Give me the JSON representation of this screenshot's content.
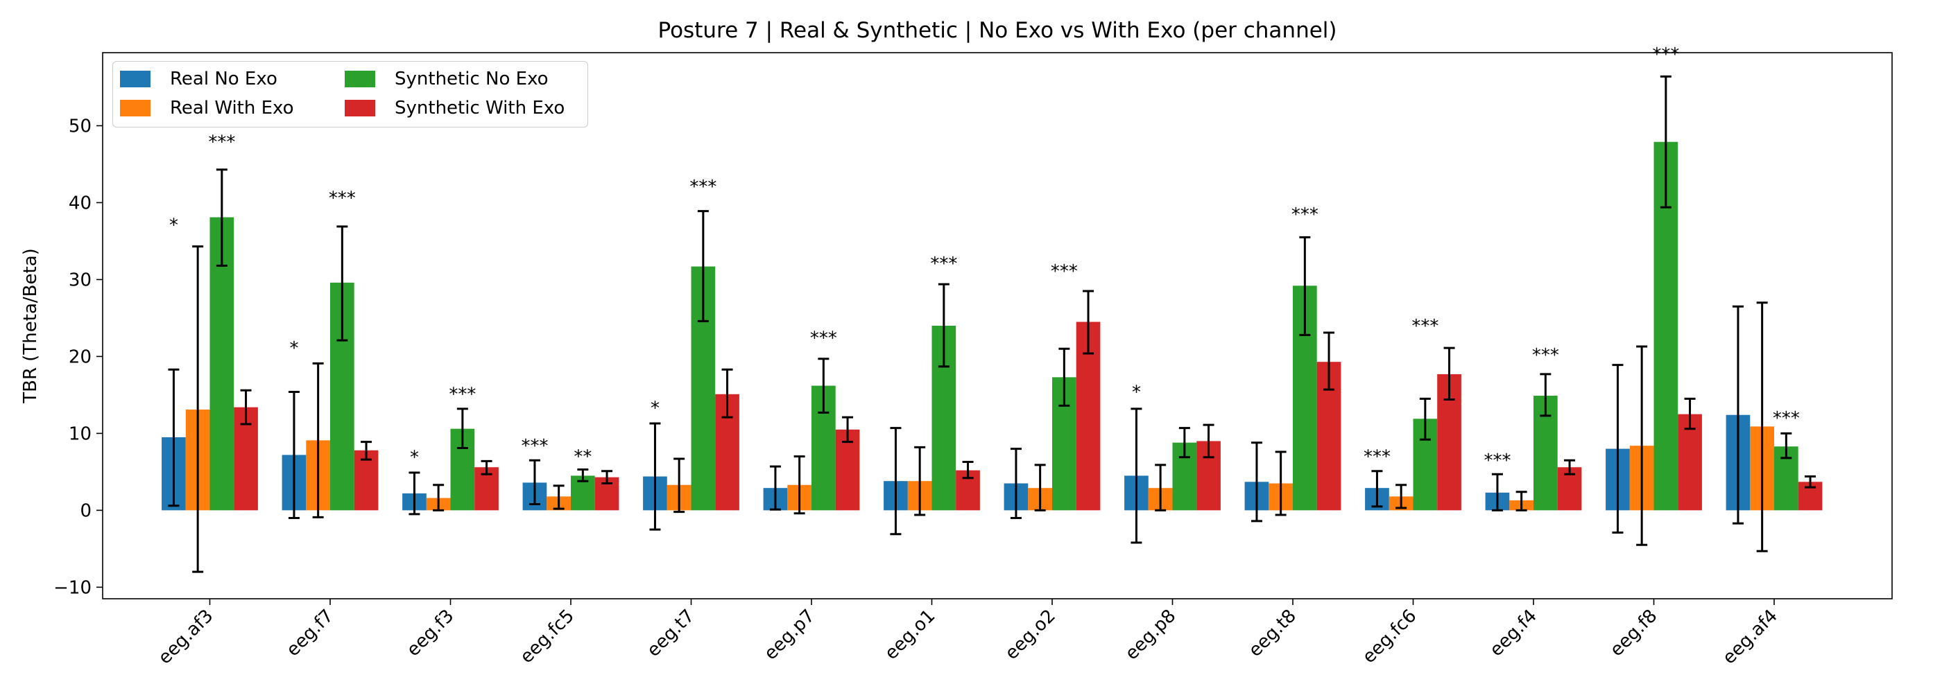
{
  "chart_data": {
    "type": "bar",
    "title": "Posture 7 | Real & Synthetic | No Exo vs With Exo (per channel)",
    "xlabel": "",
    "ylabel": "TBR (Theta/Beta)",
    "ylim": [
      -11.5,
      59.5
    ],
    "yticks": [
      -10,
      0,
      10,
      20,
      30,
      40,
      50
    ],
    "grid": false,
    "legend_position": "top-left",
    "categories": [
      "eeg.af3",
      "eeg.f7",
      "eeg.f3",
      "eeg.fc5",
      "eeg.t7",
      "eeg.p7",
      "eeg.o1",
      "eeg.o2",
      "eeg.p8",
      "eeg.t8",
      "eeg.fc6",
      "eeg.f4",
      "eeg.f8",
      "eeg.af4"
    ],
    "series": [
      {
        "name": "Real No Exo",
        "color": "#1f77b4",
        "values": [
          9.5,
          7.2,
          2.2,
          3.6,
          4.4,
          2.9,
          3.8,
          3.5,
          4.5,
          3.7,
          2.9,
          2.3,
          8.0,
          12.4
        ],
        "err_low": [
          0.6,
          -1.0,
          -0.5,
          0.8,
          -2.5,
          0.1,
          -3.1,
          -1.0,
          -4.2,
          -1.4,
          0.5,
          0.0,
          -2.9,
          -1.7
        ],
        "err_high": [
          18.3,
          15.4,
          4.9,
          6.5,
          11.3,
          5.7,
          10.7,
          8.0,
          13.2,
          8.8,
          5.1,
          4.7,
          18.9,
          26.5
        ]
      },
      {
        "name": "Real With Exo",
        "color": "#ff7f0e",
        "values": [
          13.1,
          9.1,
          1.6,
          1.8,
          3.3,
          3.3,
          3.8,
          2.9,
          2.9,
          3.5,
          1.8,
          1.3,
          8.4,
          10.9
        ],
        "err_low": [
          -8.0,
          -0.9,
          0.0,
          0.2,
          -0.2,
          -0.4,
          -0.6,
          0.0,
          0.0,
          -0.6,
          0.3,
          0.0,
          -4.5,
          -5.3
        ],
        "err_high": [
          34.3,
          19.1,
          3.3,
          3.2,
          6.7,
          7.0,
          8.2,
          5.9,
          5.9,
          7.6,
          3.3,
          2.4,
          21.3,
          27.0
        ]
      },
      {
        "name": "Synthetic No Exo",
        "color": "#2ca02c",
        "values": [
          38.1,
          29.6,
          10.6,
          4.5,
          31.7,
          16.2,
          24.0,
          17.3,
          8.8,
          29.2,
          11.9,
          14.9,
          47.9,
          8.3
        ],
        "err_low": [
          31.8,
          22.1,
          8.1,
          3.8,
          24.6,
          12.7,
          18.7,
          13.6,
          6.9,
          22.8,
          9.2,
          12.3,
          39.4,
          6.8
        ],
        "err_high": [
          44.3,
          36.9,
          13.2,
          5.3,
          38.9,
          19.7,
          29.4,
          21.0,
          10.7,
          35.5,
          14.5,
          17.7,
          56.4,
          10.0
        ]
      },
      {
        "name": "Synthetic With Exo",
        "color": "#d62728",
        "values": [
          13.4,
          7.8,
          5.6,
          4.3,
          15.1,
          10.5,
          5.2,
          24.5,
          9.0,
          19.3,
          17.7,
          5.6,
          12.5,
          3.7
        ],
        "err_low": [
          11.2,
          6.6,
          4.7,
          3.5,
          12.1,
          8.9,
          4.2,
          20.4,
          6.9,
          15.7,
          14.4,
          4.7,
          10.6,
          3.0
        ],
        "err_high": [
          15.6,
          8.9,
          6.4,
          5.1,
          18.3,
          12.1,
          6.3,
          28.5,
          11.1,
          23.1,
          21.1,
          6.5,
          14.5,
          4.4
        ]
      }
    ],
    "annotations": [
      {
        "category": "eeg.af3",
        "series": "Real No Exo",
        "text": "*",
        "y": 36.3
      },
      {
        "category": "eeg.af3",
        "series": "Synthetic No Exo",
        "text": "***",
        "y": 47.1
      },
      {
        "category": "eeg.f7",
        "series": "Real No Exo",
        "text": "*",
        "y": 20.3
      },
      {
        "category": "eeg.f7",
        "series": "Synthetic No Exo",
        "text": "***",
        "y": 39.8
      },
      {
        "category": "eeg.f3",
        "series": "Real No Exo",
        "text": "*",
        "y": 6.1
      },
      {
        "category": "eeg.f3",
        "series": "Synthetic No Exo",
        "text": "***",
        "y": 14.3
      },
      {
        "category": "eeg.fc5",
        "series": "Real No Exo",
        "text": "***",
        "y": 7.6
      },
      {
        "category": "eeg.fc5",
        "series": "Synthetic No Exo",
        "text": "**",
        "y": 6.2
      },
      {
        "category": "eeg.t7",
        "series": "Real No Exo",
        "text": "*",
        "y": 12.5
      },
      {
        "category": "eeg.t7",
        "series": "Synthetic No Exo",
        "text": "***",
        "y": 41.3
      },
      {
        "category": "eeg.p7",
        "series": "Synthetic No Exo",
        "text": "***",
        "y": 21.6
      },
      {
        "category": "eeg.o1",
        "series": "Synthetic No Exo",
        "text": "***",
        "y": 31.3
      },
      {
        "category": "eeg.o2",
        "series": "Synthetic No Exo",
        "text": "***",
        "y": 30.3
      },
      {
        "category": "eeg.p8",
        "series": "Real No Exo",
        "text": "*",
        "y": 14.6
      },
      {
        "category": "eeg.t8",
        "series": "Synthetic No Exo",
        "text": "***",
        "y": 37.7
      },
      {
        "category": "eeg.fc6",
        "series": "Real No Exo",
        "text": "***",
        "y": 6.2
      },
      {
        "category": "eeg.fc6",
        "series": "Synthetic No Exo",
        "text": "***",
        "y": 23.2
      },
      {
        "category": "eeg.f4",
        "series": "Real No Exo",
        "text": "***",
        "y": 5.7
      },
      {
        "category": "eeg.f4",
        "series": "Synthetic No Exo",
        "text": "***",
        "y": 19.4
      },
      {
        "category": "eeg.f8",
        "series": "Synthetic No Exo",
        "text": "***",
        "y": 58.5
      },
      {
        "category": "eeg.af4",
        "series": "Synthetic No Exo",
        "text": "***",
        "y": 11.2
      }
    ]
  }
}
